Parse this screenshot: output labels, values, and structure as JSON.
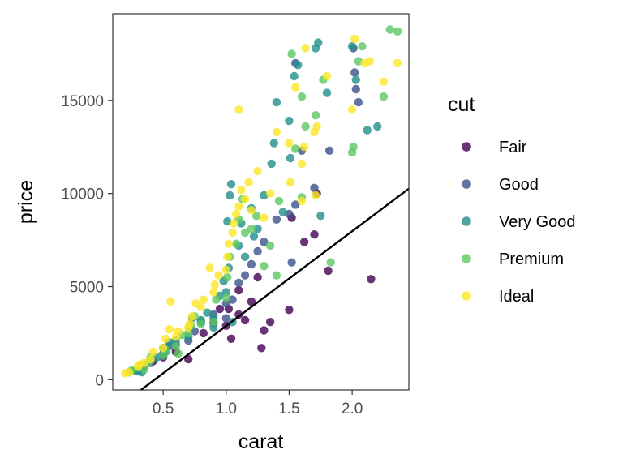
{
  "chart_data": {
    "type": "scatter",
    "title": "",
    "xlabel": "carat",
    "ylabel": "price",
    "xlim": [
      0.1,
      2.45
    ],
    "ylim": [
      -550,
      19650
    ],
    "x_ticks": [
      0.5,
      1.0,
      1.5,
      2.0
    ],
    "x_tick_labels": [
      "0.5",
      "1.0",
      "1.5",
      "2.0"
    ],
    "y_ticks": [
      0,
      5000,
      10000,
      15000
    ],
    "y_tick_labels": [
      "0",
      "5000",
      "10000",
      "15000"
    ],
    "grid": false,
    "legend": {
      "title": "cut",
      "placement": "right"
    },
    "trend_line": {
      "slope": 5084,
      "intercept": -2196
    },
    "colors": {
      "Fair": "#440154",
      "Good": "#3B528B",
      "Very Good": "#21908C",
      "Premium": "#5DC863",
      "Ideal": "#FDE725",
      "line": "#000000",
      "panel_border": "#333333"
    },
    "series": [
      {
        "name": "Fair",
        "points": [
          [
            0.7,
            1100
          ],
          [
            0.82,
            2500
          ],
          [
            0.9,
            3050
          ],
          [
            1.0,
            2900
          ],
          [
            1.02,
            3800
          ],
          [
            1.04,
            2200
          ],
          [
            1.1,
            3500
          ],
          [
            1.15,
            3200
          ],
          [
            1.2,
            4200
          ],
          [
            1.28,
            1700
          ],
          [
            1.3,
            2650
          ],
          [
            1.5,
            3750
          ],
          [
            1.52,
            8700
          ],
          [
            1.62,
            7400
          ],
          [
            1.7,
            7800
          ],
          [
            1.72,
            10000
          ],
          [
            1.81,
            5850
          ],
          [
            2.15,
            5400
          ],
          [
            0.42,
            1000
          ],
          [
            0.5,
            1200
          ],
          [
            0.6,
            1500
          ],
          [
            1.1,
            4800
          ],
          [
            1.25,
            5500
          ],
          [
            0.95,
            3800
          ],
          [
            1.35,
            3100
          ]
        ]
      },
      {
        "name": "Good",
        "points": [
          [
            0.3,
            600
          ],
          [
            0.35,
            700
          ],
          [
            0.4,
            900
          ],
          [
            0.5,
            1400
          ],
          [
            0.55,
            1800
          ],
          [
            0.6,
            1900
          ],
          [
            0.7,
            2100
          ],
          [
            0.75,
            2600
          ],
          [
            0.8,
            3100
          ],
          [
            0.9,
            3500
          ],
          [
            1.0,
            4100
          ],
          [
            1.05,
            4300
          ],
          [
            1.1,
            5200
          ],
          [
            1.15,
            5600
          ],
          [
            1.2,
            6200
          ],
          [
            1.25,
            6900
          ],
          [
            1.3,
            7400
          ],
          [
            1.4,
            8600
          ],
          [
            1.5,
            8900
          ],
          [
            1.52,
            6300
          ],
          [
            1.55,
            9400
          ],
          [
            1.6,
            12300
          ],
          [
            1.7,
            10300
          ],
          [
            1.82,
            12300
          ],
          [
            2.01,
            17800
          ],
          [
            2.02,
            16500
          ],
          [
            2.03,
            15600
          ],
          [
            2.05,
            14900
          ],
          [
            1.55,
            17000
          ],
          [
            1.0,
            3300
          ]
        ]
      },
      {
        "name": "Very Good",
        "points": [
          [
            0.23,
            400
          ],
          [
            0.28,
            500
          ],
          [
            0.3,
            450
          ],
          [
            0.31,
            700
          ],
          [
            0.4,
            1000
          ],
          [
            0.45,
            1200
          ],
          [
            0.5,
            1700
          ],
          [
            0.52,
            1500
          ],
          [
            0.55,
            2000
          ],
          [
            0.6,
            2100
          ],
          [
            0.7,
            2300
          ],
          [
            0.71,
            2800
          ],
          [
            0.73,
            3300
          ],
          [
            0.8,
            3200
          ],
          [
            0.85,
            3600
          ],
          [
            0.9,
            3300
          ],
          [
            0.95,
            4500
          ],
          [
            0.98,
            5300
          ],
          [
            1.0,
            4700
          ],
          [
            1.02,
            6000
          ],
          [
            1.01,
            8500
          ],
          [
            1.03,
            9900
          ],
          [
            1.04,
            10500
          ],
          [
            1.1,
            7200
          ],
          [
            1.12,
            8400
          ],
          [
            1.15,
            6600
          ],
          [
            1.2,
            9200
          ],
          [
            1.22,
            7700
          ],
          [
            1.25,
            8100
          ],
          [
            1.3,
            9900
          ],
          [
            1.36,
            11600
          ],
          [
            1.38,
            12700
          ],
          [
            1.4,
            14900
          ],
          [
            1.5,
            13900
          ],
          [
            1.51,
            11900
          ],
          [
            1.54,
            16300
          ],
          [
            1.57,
            16900
          ],
          [
            1.71,
            17800
          ],
          [
            1.73,
            18100
          ],
          [
            1.8,
            15400
          ],
          [
            2.0,
            17900
          ],
          [
            2.03,
            16100
          ],
          [
            2.12,
            13400
          ],
          [
            2.2,
            13600
          ],
          [
            0.9,
            2800
          ],
          [
            1.05,
            3100
          ],
          [
            1.45,
            9000
          ],
          [
            1.75,
            8800
          ],
          [
            0.33,
            400
          ]
        ]
      },
      {
        "name": "Premium",
        "points": [
          [
            0.25,
            500
          ],
          [
            0.3,
            650
          ],
          [
            0.33,
            800
          ],
          [
            0.38,
            900
          ],
          [
            0.4,
            1200
          ],
          [
            0.5,
            1300
          ],
          [
            0.52,
            1600
          ],
          [
            0.6,
            1800
          ],
          [
            0.65,
            2400
          ],
          [
            0.7,
            2500
          ],
          [
            0.72,
            2900
          ],
          [
            0.75,
            3400
          ],
          [
            0.8,
            3000
          ],
          [
            0.9,
            3100
          ],
          [
            0.92,
            4300
          ],
          [
            1.0,
            4400
          ],
          [
            1.01,
            5500
          ],
          [
            1.03,
            6600
          ],
          [
            1.08,
            7300
          ],
          [
            1.1,
            8600
          ],
          [
            1.13,
            9700
          ],
          [
            1.15,
            7900
          ],
          [
            1.2,
            8100
          ],
          [
            1.24,
            8800
          ],
          [
            1.3,
            6100
          ],
          [
            1.35,
            7200
          ],
          [
            1.42,
            9600
          ],
          [
            1.52,
            17500
          ],
          [
            1.55,
            12400
          ],
          [
            1.6,
            15200
          ],
          [
            1.63,
            13600
          ],
          [
            1.71,
            14200
          ],
          [
            1.77,
            16100
          ],
          [
            1.83,
            6300
          ],
          [
            2.0,
            12200
          ],
          [
            2.01,
            12500
          ],
          [
            2.05,
            17100
          ],
          [
            2.08,
            17900
          ],
          [
            2.25,
            15200
          ],
          [
            2.3,
            18800
          ],
          [
            2.36,
            18700
          ],
          [
            0.62,
            1400
          ],
          [
            1.4,
            5600
          ],
          [
            1.6,
            9800
          ],
          [
            0.35,
            550
          ]
        ]
      },
      {
        "name": "Ideal",
        "points": [
          [
            0.2,
            350
          ],
          [
            0.23,
            400
          ],
          [
            0.3,
            700
          ],
          [
            0.31,
            800
          ],
          [
            0.35,
            900
          ],
          [
            0.4,
            1100
          ],
          [
            0.42,
            1500
          ],
          [
            0.5,
            1700
          ],
          [
            0.52,
            2200
          ],
          [
            0.55,
            2700
          ],
          [
            0.6,
            2300
          ],
          [
            0.62,
            2600
          ],
          [
            0.7,
            2800
          ],
          [
            0.71,
            3000
          ],
          [
            0.73,
            3400
          ],
          [
            0.76,
            4100
          ],
          [
            0.8,
            3900
          ],
          [
            0.82,
            4300
          ],
          [
            0.9,
            4700
          ],
          [
            0.91,
            5100
          ],
          [
            0.94,
            5600
          ],
          [
            1.0,
            5900
          ],
          [
            1.01,
            6600
          ],
          [
            1.02,
            7300
          ],
          [
            1.05,
            7900
          ],
          [
            1.06,
            8400
          ],
          [
            1.08,
            8900
          ],
          [
            1.1,
            9300
          ],
          [
            1.12,
            10200
          ],
          [
            1.15,
            9700
          ],
          [
            1.18,
            10600
          ],
          [
            1.2,
            9100
          ],
          [
            1.25,
            11200
          ],
          [
            1.3,
            8700
          ],
          [
            1.35,
            10000
          ],
          [
            1.4,
            13300
          ],
          [
            1.5,
            12700
          ],
          [
            1.51,
            10600
          ],
          [
            1.55,
            15700
          ],
          [
            1.6,
            11600
          ],
          [
            1.62,
            12500
          ],
          [
            1.7,
            13300
          ],
          [
            1.72,
            13600
          ],
          [
            1.8,
            16300
          ],
          [
            2.0,
            14500
          ],
          [
            2.02,
            18300
          ],
          [
            2.1,
            17000
          ],
          [
            2.25,
            16000
          ],
          [
            2.36,
            17000
          ],
          [
            0.56,
            4200
          ],
          [
            1.1,
            14500
          ],
          [
            0.87,
            6000
          ],
          [
            1.63,
            17800
          ],
          [
            1.71,
            9900
          ],
          [
            2.14,
            17100
          ],
          [
            1.6,
            9600
          ]
        ]
      }
    ]
  }
}
